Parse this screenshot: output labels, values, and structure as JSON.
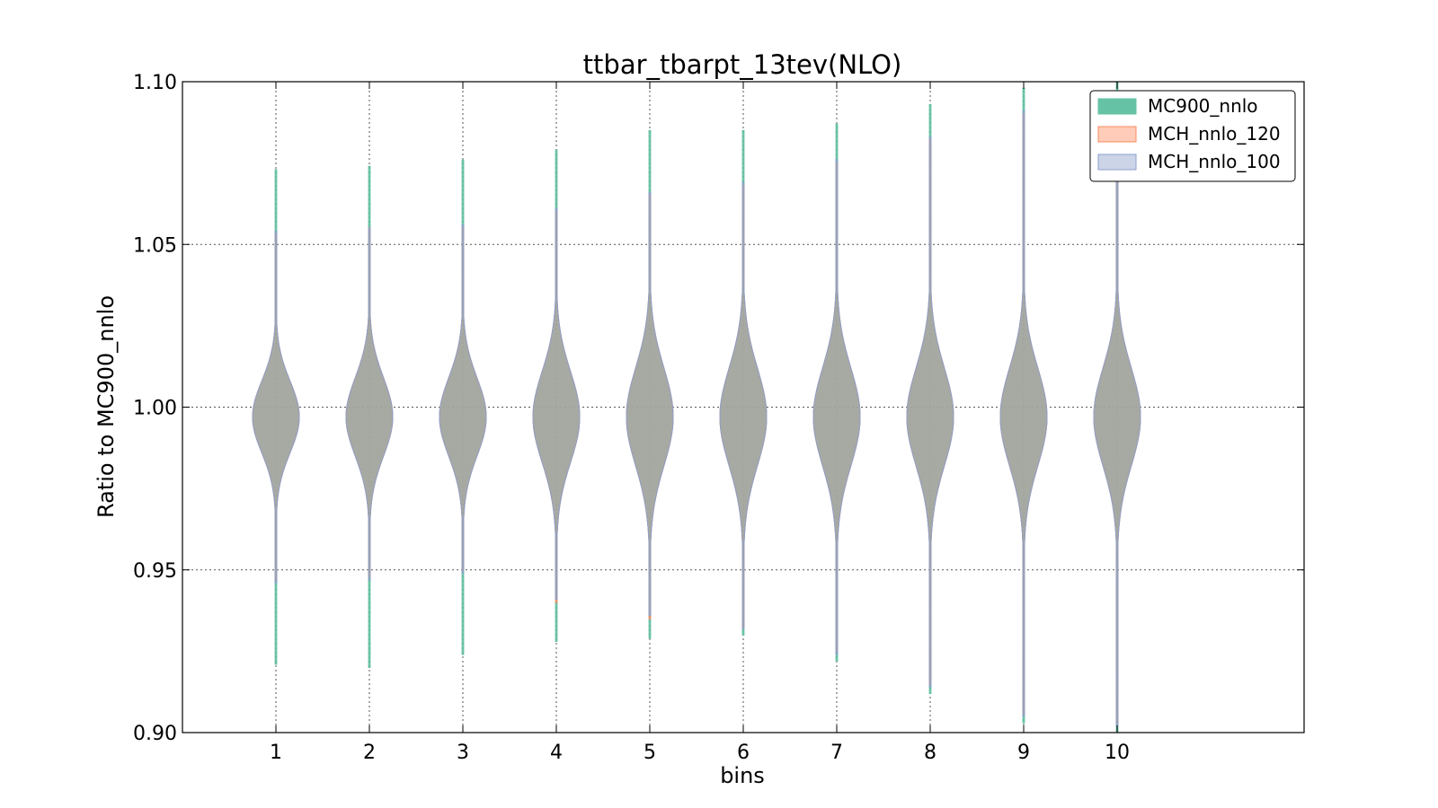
{
  "chart_data": {
    "type": "violin",
    "title": "ttbar_tbarpt_13tev(NLO)",
    "xlabel": "bins",
    "ylabel": "Ratio to MC900_nnlo",
    "categories": [
      "1",
      "2",
      "3",
      "4",
      "5",
      "6",
      "7",
      "8",
      "9",
      "10"
    ],
    "xlim": [
      0,
      12
    ],
    "ylim": [
      0.9,
      1.1
    ],
    "yticks": [
      "0.90",
      "0.95",
      "1.00",
      "1.05",
      "1.10"
    ],
    "grid": true,
    "legend_position": "top-right",
    "series": [
      {
        "name": "MC900_nnlo",
        "color": "#66c2a5",
        "min": [
          0.921,
          0.92,
          0.924,
          0.928,
          0.929,
          0.93,
          0.922,
          0.912,
          0.903,
          0.9
        ],
        "max": [
          1.073,
          1.074,
          1.076,
          1.079,
          1.085,
          1.085,
          1.087,
          1.093,
          1.098,
          1.1
        ],
        "spread": [
          0.011,
          0.012,
          0.012,
          0.014,
          0.015,
          0.015,
          0.015,
          0.015,
          0.015,
          0.015
        ]
      },
      {
        "name": "MCH_nnlo_120",
        "color": "#fc8d62",
        "min": [
          0.947,
          0.948,
          0.95,
          0.94,
          0.935,
          0.932,
          0.925,
          0.915,
          0.906,
          0.903
        ],
        "max": [
          1.053,
          1.055,
          1.055,
          1.06,
          1.065,
          1.068,
          1.075,
          1.082,
          1.09,
          1.096
        ],
        "spread": [
          0.011,
          0.012,
          0.012,
          0.014,
          0.015,
          0.015,
          0.015,
          0.015,
          0.015,
          0.015
        ]
      },
      {
        "name": "MCH_nnlo_100",
        "color": "#8da0cb",
        "min": [
          0.946,
          0.947,
          0.949,
          0.941,
          0.936,
          0.932,
          0.924,
          0.914,
          0.905,
          0.902
        ],
        "max": [
          1.054,
          1.055,
          1.056,
          1.061,
          1.066,
          1.069,
          1.076,
          1.083,
          1.091,
          1.097
        ],
        "spread": [
          0.011,
          0.012,
          0.012,
          0.014,
          0.015,
          0.015,
          0.015,
          0.015,
          0.015,
          0.015
        ]
      }
    ]
  }
}
